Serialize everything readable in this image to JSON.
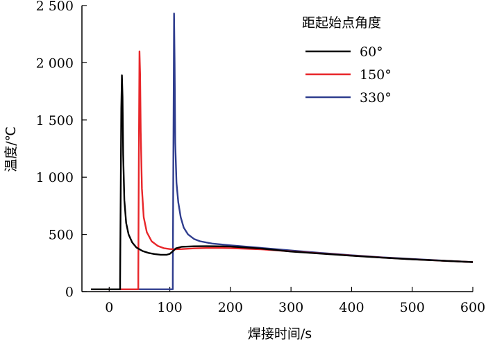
{
  "chart_data": {
    "type": "line",
    "title": "",
    "xlabel": "焊接时间/s",
    "ylabel": "温度/℃",
    "xlim": [
      -45,
      600
    ],
    "ylim": [
      0,
      2500
    ],
    "grid": false,
    "x_ticks": [
      0,
      100,
      200,
      300,
      400,
      500,
      600
    ],
    "x_tick_labels": [
      "0",
      "100",
      "200",
      "300",
      "400",
      "500",
      "600"
    ],
    "y_ticks": [
      0,
      500,
      1000,
      1500,
      2000,
      2500
    ],
    "y_tick_labels": [
      "0",
      "500",
      "1 000",
      "1 500",
      "2 000",
      "2 500"
    ],
    "legend": {
      "title": "距起始点角度",
      "position": "top-right"
    },
    "series": [
      {
        "name": "60°",
        "color": "#000000",
        "points": [
          [
            -30,
            20
          ],
          [
            18,
            20
          ],
          [
            18,
            100
          ],
          [
            19,
            900
          ],
          [
            20,
            1600
          ],
          [
            21,
            1890
          ],
          [
            22,
            1700
          ],
          [
            23,
            1200
          ],
          [
            25,
            800
          ],
          [
            28,
            600
          ],
          [
            32,
            500
          ],
          [
            38,
            430
          ],
          [
            45,
            385
          ],
          [
            55,
            355
          ],
          [
            65,
            338
          ],
          [
            75,
            328
          ],
          [
            85,
            322
          ],
          [
            95,
            322
          ],
          [
            100,
            330
          ],
          [
            105,
            352
          ],
          [
            110,
            378
          ],
          [
            120,
            392
          ],
          [
            140,
            396
          ],
          [
            160,
            397
          ],
          [
            180,
            396
          ],
          [
            200,
            394
          ],
          [
            250,
            377
          ],
          [
            300,
            350
          ],
          [
            350,
            332
          ],
          [
            400,
            314
          ],
          [
            450,
            297
          ],
          [
            500,
            282
          ],
          [
            550,
            270
          ],
          [
            600,
            258
          ]
        ]
      },
      {
        "name": "150°",
        "color": "#e8262a",
        "points": [
          [
            -30,
            20
          ],
          [
            48,
            20
          ],
          [
            48,
            150
          ],
          [
            49,
            1200
          ],
          [
            50,
            2100
          ],
          [
            51,
            1900
          ],
          [
            52,
            1400
          ],
          [
            54,
            900
          ],
          [
            57,
            650
          ],
          [
            62,
            520
          ],
          [
            70,
            440
          ],
          [
            80,
            400
          ],
          [
            90,
            380
          ],
          [
            100,
            372
          ],
          [
            110,
            370
          ],
          [
            120,
            372
          ],
          [
            140,
            378
          ],
          [
            160,
            381
          ],
          [
            180,
            382
          ],
          [
            200,
            380
          ],
          [
            250,
            370
          ],
          [
            300,
            352
          ],
          [
            350,
            333
          ],
          [
            400,
            315
          ],
          [
            450,
            298
          ],
          [
            500,
            283
          ],
          [
            550,
            270
          ],
          [
            600,
            258
          ]
        ]
      },
      {
        "name": "330°",
        "color": "#2f3d8e",
        "points": [
          [
            -30,
            20
          ],
          [
            105,
            20
          ],
          [
            105,
            150
          ],
          [
            106,
            1300
          ],
          [
            107,
            2430
          ],
          [
            108,
            2000
          ],
          [
            109,
            1300
          ],
          [
            111,
            950
          ],
          [
            114,
            780
          ],
          [
            118,
            650
          ],
          [
            123,
            560
          ],
          [
            130,
            500
          ],
          [
            140,
            460
          ],
          [
            150,
            440
          ],
          [
            170,
            420
          ],
          [
            200,
            405
          ],
          [
            250,
            382
          ],
          [
            300,
            360
          ],
          [
            350,
            338
          ],
          [
            400,
            318
          ],
          [
            450,
            300
          ],
          [
            500,
            285
          ],
          [
            550,
            271
          ],
          [
            600,
            258
          ]
        ]
      }
    ]
  }
}
